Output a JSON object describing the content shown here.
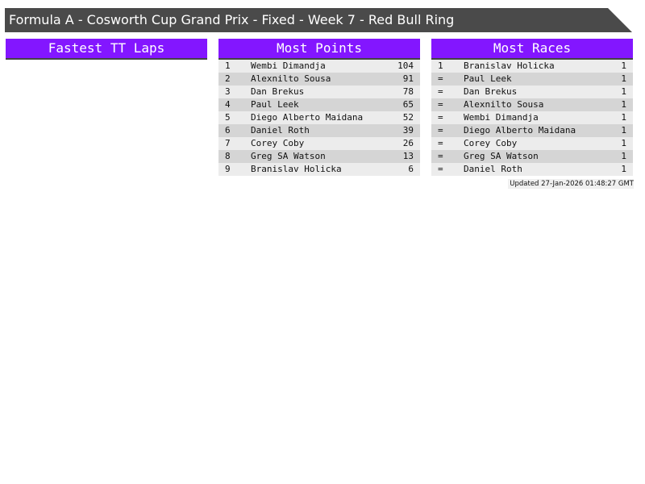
{
  "title": "Formula A - Cosworth Cup Grand Prix - Fixed - Week 7 - Red Bull Ring",
  "accent": "#8316ff",
  "panels": [
    {
      "title": "Fastest TT Laps",
      "rows": []
    },
    {
      "title": "Most Points",
      "rows": [
        [
          "1",
          "Wembi Dimandja",
          "104"
        ],
        [
          "2",
          "Alexnilto Sousa",
          "91"
        ],
        [
          "3",
          "Dan Brekus",
          "78"
        ],
        [
          "4",
          "Paul Leek",
          "65"
        ],
        [
          "5",
          "Diego Alberto Maidana",
          "52"
        ],
        [
          "6",
          "Daniel Roth",
          "39"
        ],
        [
          "7",
          "Corey Coby",
          "26"
        ],
        [
          "8",
          "Greg SA Watson",
          "13"
        ],
        [
          "9",
          "Branislav Holicka",
          "6"
        ]
      ]
    },
    {
      "title": "Most Races",
      "rows": [
        [
          "1",
          "Branislav Holicka",
          "1"
        ],
        [
          "=",
          "Paul Leek",
          "1"
        ],
        [
          "=",
          "Dan Brekus",
          "1"
        ],
        [
          "=",
          "Alexnilto Sousa",
          "1"
        ],
        [
          "=",
          "Wembi Dimandja",
          "1"
        ],
        [
          "=",
          "Diego Alberto Maidana",
          "1"
        ],
        [
          "=",
          "Corey Coby",
          "1"
        ],
        [
          "=",
          "Greg SA Watson",
          "1"
        ],
        [
          "=",
          "Daniel Roth",
          "1"
        ]
      ]
    }
  ],
  "updated": "Updated 27-Jan-2026 01:48:27 GMT"
}
